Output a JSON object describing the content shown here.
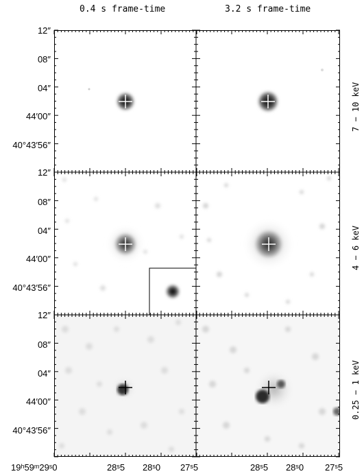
{
  "columns": [
    {
      "title": "0.4 s frame-time"
    },
    {
      "title": "3.2 s frame-time"
    }
  ],
  "rows": [
    {
      "label": "7 − 10 keV"
    },
    {
      "label": "4 − 6 keV"
    },
    {
      "label": "0.25 − 1 keV"
    }
  ],
  "y_ticks": {
    "top": "12″",
    "labels": [
      "08″",
      "04″",
      "44′00″",
      "40°43′56″"
    ]
  },
  "x_ticks": {
    "left_panel": [
      "19ʰ59ᵐ29ˢ0",
      "28ˢ5",
      "28ˢ0",
      "27ˢ5"
    ],
    "right_panel": [
      "28ˢ5",
      "28ˢ0",
      "27ˢ5"
    ]
  },
  "colors": {
    "frame": "#000000",
    "background": "#ffffff",
    "emission": "#222222"
  }
}
